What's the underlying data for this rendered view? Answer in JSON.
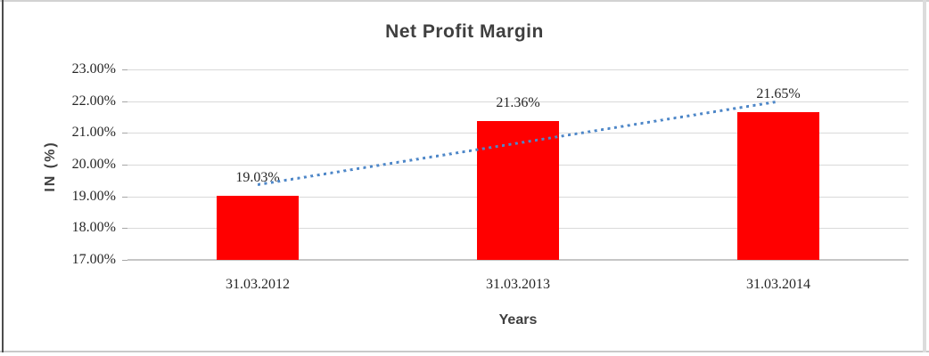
{
  "chart_data": {
    "type": "bar",
    "title": "Net Profit Margin",
    "xlabel": "Years",
    "ylabel": "IN (%)",
    "categories": [
      "31.03.2012",
      "31.03.2013",
      "31.03.2014"
    ],
    "values": [
      19.03,
      21.36,
      21.65
    ],
    "data_labels": [
      "19.03%",
      "21.36%",
      "21.65%"
    ],
    "ylim": [
      17,
      23
    ],
    "ytick_step": 1,
    "ytick_labels_top_to_bottom": [
      "23.00%",
      "22.00%",
      "21.00%",
      "20.00%",
      "19.00%",
      "18.00%",
      "17.00%"
    ],
    "grid": true,
    "legend": "none",
    "bar_color": "#ff0000",
    "gridline_color": "#d9d9d9",
    "text_color": "#262626",
    "title_color": "#3f3f3f",
    "trendline": {
      "type": "linear",
      "style": "dotted",
      "color": "#4e87c8",
      "start_value": 19.37,
      "end_value": 21.99
    }
  }
}
